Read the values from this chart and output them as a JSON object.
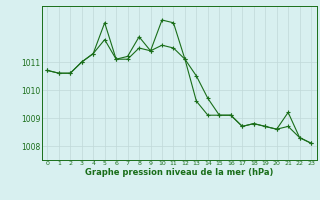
{
  "xlabel": "Graphe pression niveau de la mer (hPa)",
  "hours": [
    0,
    1,
    2,
    3,
    4,
    5,
    6,
    7,
    8,
    9,
    10,
    11,
    12,
    13,
    14,
    15,
    16,
    17,
    18,
    19,
    20,
    21,
    22,
    23
  ],
  "line1": [
    1010.7,
    1010.6,
    1010.6,
    1011.0,
    1011.3,
    1011.8,
    1011.1,
    1011.1,
    1011.5,
    1011.4,
    1011.6,
    1011.5,
    1011.1,
    1010.5,
    1009.7,
    1009.1,
    1009.1,
    1008.7,
    1008.8,
    1008.7,
    1008.6,
    1008.7,
    1008.3,
    1008.1
  ],
  "line2": [
    1010.7,
    1010.6,
    1010.6,
    1011.0,
    1011.3,
    1012.4,
    1011.1,
    1011.2,
    1011.9,
    1011.4,
    1012.5,
    1012.4,
    1011.1,
    1009.6,
    1009.1,
    1009.1,
    1009.1,
    1008.7,
    1008.8,
    1008.7,
    1008.6,
    1009.2,
    1008.3,
    1008.1
  ],
  "line_color": "#1a6e1a",
  "bg_color": "#d8f0f0",
  "grid_color": "#c0d8d8",
  "ylim_min": 1007.5,
  "ylim_max": 1013.0,
  "yticks": [
    1008,
    1009,
    1010,
    1011
  ],
  "marker": "+",
  "marker_size": 3,
  "line_width": 0.8
}
